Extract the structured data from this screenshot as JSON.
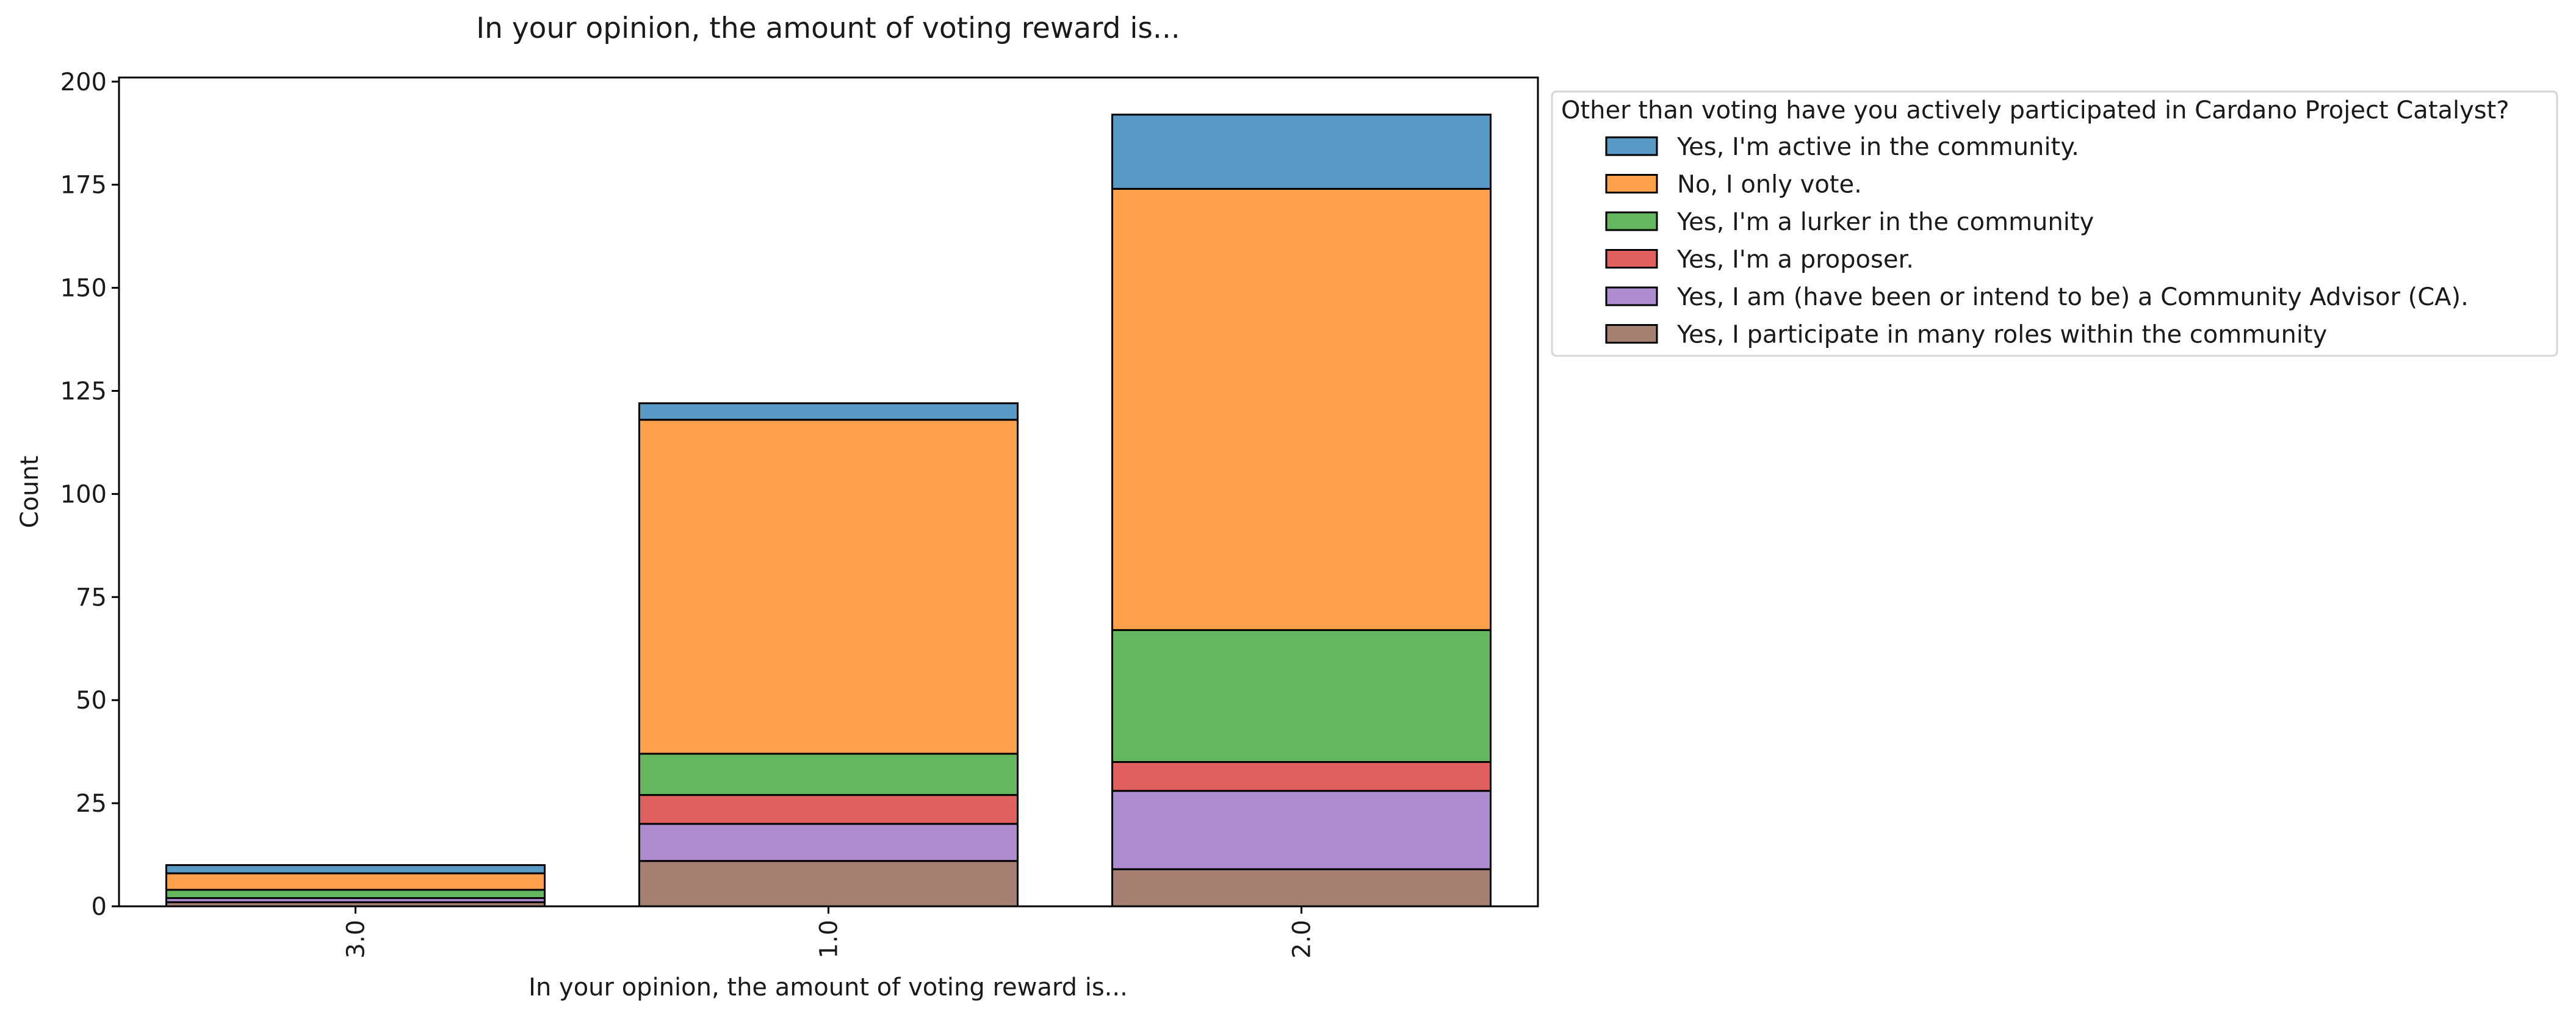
{
  "chart_data": {
    "type": "bar",
    "stacked": true,
    "title": "In your opinion, the amount of voting reward is...",
    "xlabel": "In your opinion, the amount of voting reward is...",
    "ylabel": "Count",
    "categories": [
      "3.0",
      "1.0",
      "2.0"
    ],
    "ylim": [
      0,
      201
    ],
    "yticks": [
      0,
      25,
      50,
      75,
      100,
      125,
      150,
      175,
      200
    ],
    "grid": false,
    "legend": {
      "title": "Other than voting have you actively participated in Cardano Project Catalyst?",
      "placement": "outside-right-top"
    },
    "series": [
      {
        "name": "Yes, I participate in many roles within the community",
        "color": "#a67f73",
        "values": [
          1,
          11,
          9
        ]
      },
      {
        "name": "Yes, I am (have been or intend to be) a Community Advisor (CA).",
        "color": "#ad8ccf",
        "values": [
          1,
          9,
          19
        ]
      },
      {
        "name": "Yes, I'm a proposer.",
        "color": "#df605e",
        "values": [
          0,
          7,
          7
        ]
      },
      {
        "name": "Yes, I'm a lurker in the community",
        "color": "#64b75f",
        "values": [
          2,
          10,
          32
        ]
      },
      {
        "name": "No, I only vote.",
        "color": "#ffa04c",
        "values": [
          4,
          81,
          107
        ]
      },
      {
        "name": "Yes, I'm active in the community.",
        "color": "#5899c5",
        "values": [
          2,
          4,
          18
        ]
      }
    ],
    "legend_order": [
      5,
      4,
      3,
      2,
      1,
      0
    ]
  }
}
